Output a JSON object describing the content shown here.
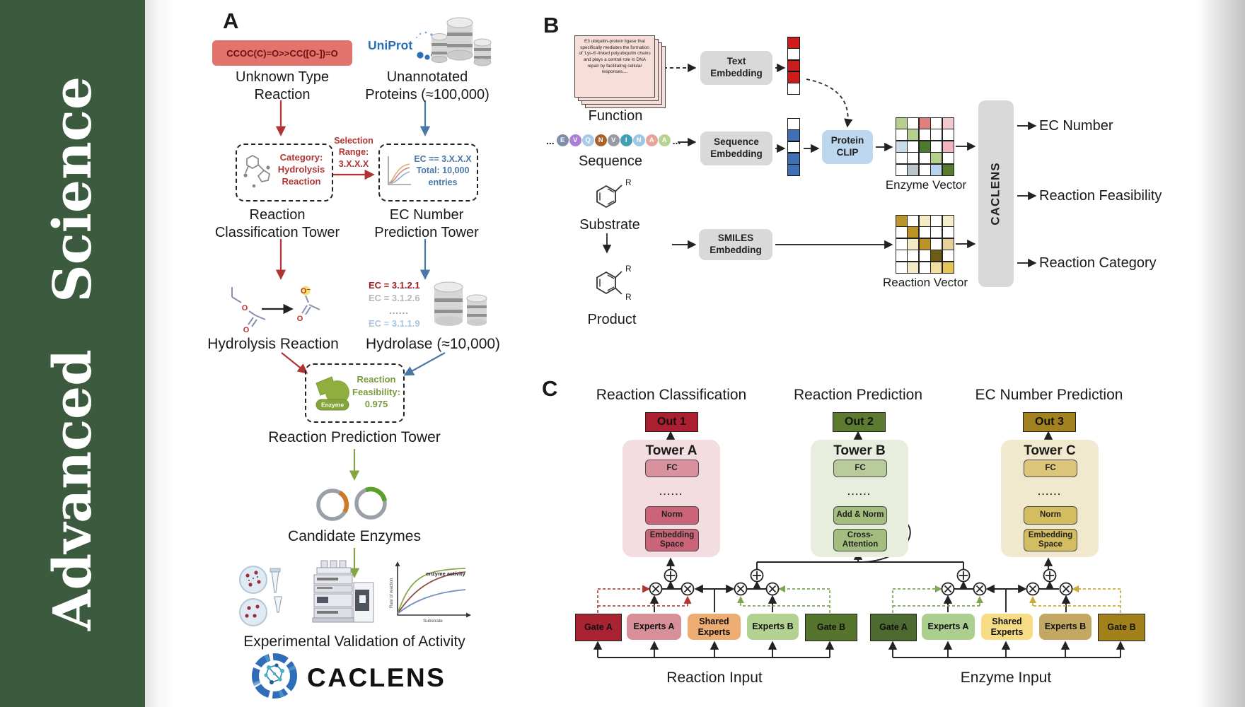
{
  "journal": {
    "name": "Advanced Science",
    "brand_green": "#3c5a3e"
  },
  "panelA": {
    "label": "A",
    "smiles": "CCOC(C)=O>>CC([O-])=O",
    "unknown_reaction": "Unknown Type\nReaction",
    "uniprot": "UniProt",
    "unannotated": "Unannotated\nProteins (≈100,000)",
    "selection_range": "Selection\nRange:\n3.X.X.X",
    "category_box": "Category:\nHydrolysis\nReaction",
    "ec_box": "EC == 3.X.X.X\nTotal: 10,000\nentries",
    "classification_tower": "Reaction\nClassification Tower",
    "ec_tower": "EC Number\nPrediction Tower",
    "ec_items": [
      "EC = 3.1.2.1",
      "EC = 3.1.2.6",
      "......",
      "EC = 3.1.1.9"
    ],
    "ec_item_colors": [
      "#9e1b1b",
      "#b8b8b8",
      "#9a9a9a",
      "#a9c6e0"
    ],
    "hydrolysis": "Hydrolysis Reaction",
    "hydrolase": "Hydrolase (≈10,000)",
    "enzyme": "Enzyme",
    "feasibility": "Reaction\nFeasibility:\n0.975",
    "prediction_tower": "Reaction Prediction Tower",
    "candidates": "Candidate Enzymes",
    "validation": "Experimental Validation of Activity",
    "wordmark": "CACLENS",
    "atoms": {
      "o": "O",
      "o_minus": "O⁻"
    },
    "plot": {
      "annotation": "enzyme activity",
      "ylabel": "Rate of reaction",
      "xlabel": "Substrate"
    }
  },
  "panelB": {
    "label": "B",
    "function_text": "E3 ubiquitin-protein ligase that specifically mediates the formation of 'Lys-6'-linked polyubiquitin chains and plays a central role in DNA repair by facilitating cellular responses....",
    "function": "Function",
    "ellipsis": "...",
    "beads": [
      {
        "l": "E",
        "c": "#7d8fa8"
      },
      {
        "l": "V",
        "c": "#ab7fd4"
      },
      {
        "l": "Q",
        "c": "#a9cbe8"
      },
      {
        "l": "N",
        "c": "#a8622e"
      },
      {
        "l": "V",
        "c": "#9a9aa2"
      },
      {
        "l": "I",
        "c": "#42a0b4"
      },
      {
        "l": "N",
        "c": "#9cc8e6"
      },
      {
        "l": "A",
        "c": "#e8a49c"
      },
      {
        "l": "A",
        "c": "#b6d394"
      }
    ],
    "sequence": "Sequence",
    "substrate": "Substrate",
    "product": "Product",
    "r_label": "R",
    "text_embedding": "Text\nEmbedding",
    "sequence_embedding": "Sequence\nEmbedding",
    "smiles_embedding": "SMILES\nEmbedding",
    "protein_clip": "Protein\nCLIP",
    "enzyme_vector": "Enzyme Vector",
    "reaction_vector": "Reaction Vector",
    "caclens": "CACLENS",
    "outputs": [
      "EC Number",
      "Reaction Feasibility",
      "Reaction Category"
    ],
    "text_vec": [
      "#cc1d1d",
      "#ffffff",
      "#cc1d1d",
      "#cc1d1d",
      "#ffffff"
    ],
    "seq_vec": [
      "#ffffff",
      "#3f6fb5",
      "#ffffff",
      "#3f6fb5",
      "#3f6fb5"
    ],
    "enzyme_grid": [
      "#b5d08c",
      "#ffffff",
      "#e07f7f",
      "#ffffff",
      "#f2c9cd",
      "#ffffff",
      "#b5d08c",
      "#ffffff",
      "#ffffff",
      "#ffffff",
      "#c9dcea",
      "#ffffff",
      "#4e7a30",
      "#ffffff",
      "#f0b5bd",
      "#ffffff",
      "#ffffff",
      "#ffffff",
      "#b5d08c",
      "#ffffff",
      "#ffffff",
      "#bac6ce",
      "#ffffff",
      "#b8d4ec",
      "#5a7a2e"
    ],
    "reaction_grid": [
      "#b8962a",
      "#ffffff",
      "#f4ebc4",
      "#ffffff",
      "#f6eecb",
      "#ffffff",
      "#bc9426",
      "#ffffff",
      "#ffffff",
      "#ffffff",
      "#ffffff",
      "#f4ebc4",
      "#bc9426",
      "#ffffff",
      "#e6d098",
      "#ffffff",
      "#ffffff",
      "#ffffff",
      "#6b5c16",
      "#ffffff",
      "#ffffff",
      "#f4ebc4",
      "#ffffff",
      "#f0e0a2",
      "#e5c554"
    ]
  },
  "panelC": {
    "label": "C",
    "titles": [
      "Reaction Classification",
      "Reaction Prediction",
      "EC Number Prediction"
    ],
    "outs": [
      "Out 1",
      "Out 2",
      "Out 3"
    ],
    "out_colors": [
      "#ab1f30",
      "#5c7b31",
      "#a2821f"
    ],
    "towers": [
      {
        "name": "Tower A",
        "fc": "FC",
        "dots": "......",
        "mid": "Norm",
        "low": "Embedding\nSpace"
      },
      {
        "name": "Tower B",
        "fc": "FC",
        "dots": "......",
        "mid": "Add & Norm",
        "low": "Cross-\nAttention"
      },
      {
        "name": "Tower C",
        "fc": "FC",
        "dots": "......",
        "mid": "Norm",
        "low": "Embedding\nSpace"
      }
    ],
    "groups": [
      {
        "gate_a": "Gate A",
        "experts_a": "Experts A",
        "shared": "Shared\nExperts",
        "experts_b": "Experts B",
        "gate_b": "Gate B",
        "input": "Reaction Input"
      },
      {
        "gate_a": "Gate A",
        "experts_a": "Experts A",
        "shared": "Shared\nExperts",
        "experts_b": "Experts B",
        "gate_b": "Gate B",
        "input": "Enzyme Input"
      }
    ]
  }
}
